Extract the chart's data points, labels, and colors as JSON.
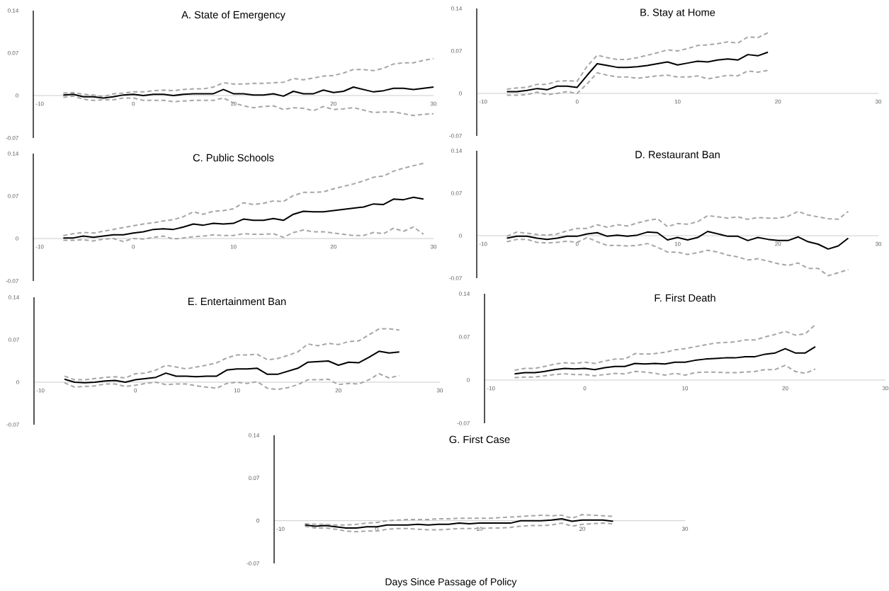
{
  "chart_data": [
    {
      "type": "line",
      "title": "A. State of Emergency",
      "xlim": [
        -10,
        30
      ],
      "ylim": [
        -0.07,
        0.14
      ],
      "xticks": [
        -10,
        0,
        10,
        20,
        30
      ],
      "yticks": [
        -0.07,
        0,
        0.07,
        0.14
      ],
      "x": [
        -7,
        -6,
        -5,
        -4,
        -3,
        -2,
        -1,
        0,
        1,
        2,
        3,
        4,
        5,
        6,
        7,
        8,
        9,
        10,
        11,
        12,
        13,
        14,
        15,
        16,
        17,
        18,
        19,
        20,
        21,
        22,
        23,
        24,
        25,
        26,
        27,
        28,
        29,
        30
      ],
      "series": [
        {
          "color": "#000000",
          "line_style": "solid",
          "values": [
            0.001,
            0.002,
            -0.002,
            -0.002,
            -0.004,
            -0.002,
            0.001,
            0.002,
            0,
            0.002,
            0.002,
            0,
            0.002,
            0.003,
            0.003,
            0.003,
            0.01,
            0.003,
            0.003,
            0.001,
            0.001,
            0.003,
            -0.001,
            0.007,
            0.003,
            0.003,
            0.009,
            0.005,
            0.007,
            0.014,
            0.01,
            0.006,
            0.008,
            0.012,
            0.012,
            0.01,
            0.012,
            0.014
          ]
        },
        {
          "color": "#a6a6a6",
          "line_style": "dashed",
          "values": [
            0.004,
            0.005,
            0.002,
            0.001,
            -0.002,
            0.003,
            0.004,
            0.006,
            0.006,
            0.008,
            0.009,
            0.008,
            0.01,
            0.011,
            0.011,
            0.014,
            0.021,
            0.019,
            0.019,
            0.02,
            0.02,
            0.021,
            0.022,
            0.028,
            0.026,
            0.029,
            0.032,
            0.033,
            0.037,
            0.043,
            0.043,
            0.041,
            0.045,
            0.052,
            0.054,
            0.054,
            0.058,
            0.061
          ]
        },
        {
          "color": "#a6a6a6",
          "line_style": "dashed",
          "values": [
            -0.003,
            -0.001,
            -0.006,
            -0.008,
            -0.007,
            -0.007,
            -0.004,
            -0.004,
            -0.008,
            -0.008,
            -0.008,
            -0.01,
            -0.009,
            -0.008,
            -0.008,
            -0.008,
            -0.004,
            -0.012,
            -0.017,
            -0.02,
            -0.018,
            -0.017,
            -0.023,
            -0.02,
            -0.021,
            -0.025,
            -0.018,
            -0.023,
            -0.022,
            -0.02,
            -0.024,
            -0.028,
            -0.027,
            -0.027,
            -0.03,
            -0.033,
            -0.031,
            -0.03
          ]
        }
      ]
    },
    {
      "type": "line",
      "title": "B. Stay at Home",
      "xlim": [
        -10,
        30
      ],
      "ylim": [
        -0.07,
        0.14
      ],
      "xticks": [
        -10,
        0,
        10,
        20,
        30
      ],
      "yticks": [
        -0.07,
        0,
        0.07,
        0.14
      ],
      "x": [
        -7,
        -6,
        -5,
        -4,
        -3,
        -2,
        -1,
        0,
        1,
        2,
        3,
        4,
        5,
        6,
        7,
        8,
        9,
        10,
        11,
        12,
        13,
        14,
        15,
        16,
        17,
        18,
        19
      ],
      "series": [
        {
          "color": "#000000",
          "line_style": "solid",
          "values": [
            0.003,
            0.003,
            0.005,
            0.008,
            0.006,
            0.012,
            0.012,
            0.01,
            0.03,
            0.049,
            0.046,
            0.043,
            0.043,
            0.044,
            0.046,
            0.049,
            0.052,
            0.047,
            0.05,
            0.053,
            0.052,
            0.055,
            0.057,
            0.055,
            0.064,
            0.062,
            0.068
          ]
        },
        {
          "color": "#a6a6a6",
          "line_style": "dashed",
          "values": [
            0.007,
            0.009,
            0.01,
            0.015,
            0.015,
            0.02,
            0.021,
            0.02,
            0.045,
            0.063,
            0.059,
            0.056,
            0.056,
            0.059,
            0.063,
            0.067,
            0.072,
            0.07,
            0.074,
            0.079,
            0.08,
            0.082,
            0.085,
            0.083,
            0.093,
            0.092,
            0.1
          ]
        },
        {
          "color": "#a6a6a6",
          "line_style": "dashed",
          "values": [
            -0.003,
            -0.003,
            -0.002,
            0.002,
            -0.002,
            0,
            0.003,
            0,
            0.016,
            0.034,
            0.03,
            0.027,
            0.027,
            0.025,
            0.027,
            0.029,
            0.03,
            0.027,
            0.027,
            0.029,
            0.024,
            0.027,
            0.03,
            0.029,
            0.037,
            0.035,
            0.038
          ]
        }
      ]
    },
    {
      "type": "line",
      "title": "C. Public Schools",
      "xlim": [
        -10,
        30
      ],
      "ylim": [
        -0.07,
        0.14
      ],
      "xticks": [
        -10,
        0,
        10,
        20,
        30
      ],
      "yticks": [
        -0.07,
        0,
        0.07,
        0.14
      ],
      "x": [
        -7,
        -6,
        -5,
        -4,
        -3,
        -2,
        -1,
        0,
        1,
        2,
        3,
        4,
        5,
        6,
        7,
        8,
        9,
        10,
        11,
        12,
        13,
        14,
        15,
        16,
        17,
        18,
        19,
        20,
        21,
        22,
        23,
        24,
        25,
        26,
        27,
        28,
        29
      ],
      "series": [
        {
          "color": "#000000",
          "line_style": "solid",
          "values": [
            0.001,
            0.001,
            0.004,
            0.002,
            0.004,
            0.006,
            0.006,
            0.009,
            0.011,
            0.015,
            0.016,
            0.015,
            0.019,
            0.024,
            0.022,
            0.025,
            0.024,
            0.025,
            0.032,
            0.03,
            0.03,
            0.033,
            0.03,
            0.04,
            0.045,
            0.044,
            0.044,
            0.046,
            0.048,
            0.05,
            0.052,
            0.057,
            0.056,
            0.065,
            0.064,
            0.068,
            0.065
          ]
        },
        {
          "color": "#a6a6a6",
          "line_style": "dashed",
          "values": [
            0.005,
            0.008,
            0.01,
            0.009,
            0.012,
            0.015,
            0.018,
            0.021,
            0.024,
            0.026,
            0.029,
            0.031,
            0.036,
            0.044,
            0.04,
            0.045,
            0.046,
            0.049,
            0.059,
            0.056,
            0.058,
            0.062,
            0.061,
            0.071,
            0.076,
            0.076,
            0.077,
            0.082,
            0.086,
            0.09,
            0.095,
            0.101,
            0.103,
            0.111,
            0.116,
            0.12,
            0.124
          ]
        },
        {
          "color": "#a6a6a6",
          "line_style": "dashed",
          "values": [
            -0.003,
            -0.003,
            -0.002,
            -0.004,
            -0.001,
            0,
            -0.005,
            0,
            -0.001,
            0.002,
            0.004,
            -0.001,
            0.001,
            0.003,
            0.004,
            0.006,
            0.005,
            0.005,
            0.008,
            0.007,
            0.007,
            0.008,
            0.002,
            0.01,
            0.014,
            0.011,
            0.011,
            0.009,
            0.007,
            0.005,
            0.005,
            0.01,
            0.008,
            0.017,
            0.012,
            0.019,
            0.007
          ]
        }
      ]
    },
    {
      "type": "line",
      "title": "D. Restaurant Ban",
      "xlim": [
        -10,
        30
      ],
      "ylim": [
        -0.07,
        0.14
      ],
      "xticks": [
        -10,
        0,
        10,
        20,
        30
      ],
      "yticks": [
        -0.07,
        0,
        0.07,
        0.14
      ],
      "x": [
        -7,
        -6,
        -5,
        -4,
        -3,
        -2,
        -1,
        0,
        1,
        2,
        3,
        4,
        5,
        6,
        7,
        8,
        9,
        10,
        11,
        12,
        13,
        14,
        15,
        16,
        17,
        18,
        19,
        20,
        21,
        22,
        23,
        24,
        25,
        26,
        27
      ],
      "series": [
        {
          "color": "#000000",
          "line_style": "solid",
          "values": [
            -0.004,
            -0.001,
            -0.001,
            -0.004,
            -0.006,
            -0.004,
            -0.001,
            -0.001,
            0.003,
            0.005,
            -0.001,
            0.001,
            -0.001,
            0.001,
            0.006,
            0.005,
            -0.007,
            -0.003,
            -0.007,
            -0.003,
            0.007,
            0.003,
            -0.001,
            -0.001,
            -0.008,
            -0.003,
            -0.006,
            -0.008,
            -0.008,
            -0.002,
            -0.01,
            -0.014,
            -0.022,
            -0.017,
            -0.004
          ]
        },
        {
          "color": "#a6a6a6",
          "line_style": "dashed",
          "values": [
            -0.001,
            0.006,
            0.004,
            0.002,
            0.001,
            0.003,
            0.008,
            0.012,
            0.012,
            0.018,
            0.014,
            0.018,
            0.016,
            0.021,
            0.025,
            0.028,
            0.015,
            0.02,
            0.019,
            0.023,
            0.033,
            0.031,
            0.029,
            0.031,
            0.027,
            0.03,
            0.029,
            0.029,
            0.032,
            0.04,
            0.034,
            0.031,
            0.028,
            0.027,
            0.04
          ]
        },
        {
          "color": "#a6a6a6",
          "line_style": "dashed",
          "values": [
            -0.01,
            -0.006,
            -0.006,
            -0.011,
            -0.012,
            -0.011,
            -0.009,
            -0.011,
            -0.003,
            -0.01,
            -0.016,
            -0.016,
            -0.017,
            -0.016,
            -0.013,
            -0.019,
            -0.027,
            -0.027,
            -0.031,
            -0.028,
            -0.024,
            -0.027,
            -0.032,
            -0.035,
            -0.04,
            -0.038,
            -0.042,
            -0.046,
            -0.049,
            -0.045,
            -0.054,
            -0.054,
            -0.066,
            -0.061,
            -0.056
          ]
        }
      ]
    },
    {
      "type": "line",
      "title": "E. Entertainment Ban",
      "xlim": [
        -10,
        30
      ],
      "ylim": [
        -0.07,
        0.14
      ],
      "xticks": [
        -10,
        0,
        10,
        20,
        30
      ],
      "yticks": [
        -0.07,
        0,
        0.07,
        0.14
      ],
      "x": [
        -7,
        -6,
        -5,
        -4,
        -3,
        -2,
        -1,
        0,
        1,
        2,
        3,
        4,
        5,
        6,
        7,
        8,
        9,
        10,
        11,
        12,
        13,
        14,
        15,
        16,
        17,
        18,
        19,
        20,
        21,
        22,
        23,
        24,
        25,
        26
      ],
      "series": [
        {
          "color": "#000000",
          "line_style": "solid",
          "values": [
            0.005,
            0,
            -0.001,
            0,
            0.002,
            0.003,
            0,
            0.004,
            0.006,
            0.008,
            0.015,
            0.01,
            0.01,
            0.009,
            0.01,
            0.01,
            0.02,
            0.022,
            0.022,
            0.023,
            0.013,
            0.013,
            0.018,
            0.023,
            0.033,
            0.034,
            0.035,
            0.028,
            0.033,
            0.032,
            0.041,
            0.051,
            0.048,
            0.05
          ]
        },
        {
          "color": "#a6a6a6",
          "line_style": "dashed",
          "values": [
            0.01,
            0.004,
            0.004,
            0.006,
            0.008,
            0.009,
            0.007,
            0.014,
            0.015,
            0.02,
            0.028,
            0.025,
            0.022,
            0.025,
            0.028,
            0.032,
            0.04,
            0.045,
            0.045,
            0.046,
            0.037,
            0.039,
            0.044,
            0.05,
            0.063,
            0.06,
            0.064,
            0.062,
            0.067,
            0.068,
            0.078,
            0.088,
            0.088,
            0.086
          ]
        },
        {
          "color": "#a6a6a6",
          "line_style": "dashed",
          "values": [
            -0.001,
            -0.008,
            -0.007,
            -0.006,
            -0.003,
            -0.003,
            -0.007,
            -0.005,
            -0.002,
            0,
            -0.004,
            -0.003,
            -0.003,
            -0.006,
            -0.008,
            -0.01,
            -0.002,
            0,
            -0.002,
            0.001,
            -0.01,
            -0.012,
            -0.009,
            -0.004,
            0.004,
            0.004,
            0.005,
            -0.004,
            -0.002,
            -0.003,
            0.004,
            0.014,
            0.007,
            0.011
          ]
        }
      ]
    },
    {
      "type": "line",
      "title": "F. First Death",
      "xlim": [
        -10,
        30
      ],
      "ylim": [
        -0.07,
        0.14
      ],
      "xticks": [
        -10,
        0,
        10,
        20,
        30
      ],
      "yticks": [
        -0.07,
        0,
        0.07,
        0.14
      ],
      "x": [
        -7,
        -6,
        -5,
        -4,
        -3,
        -2,
        -1,
        0,
        1,
        2,
        3,
        4,
        5,
        6,
        7,
        8,
        9,
        10,
        11,
        12,
        13,
        14,
        15,
        16,
        17,
        18,
        19,
        20,
        21,
        22,
        23
      ],
      "series": [
        {
          "color": "#000000",
          "line_style": "solid",
          "values": [
            0.01,
            0.012,
            0.012,
            0.014,
            0.017,
            0.019,
            0.018,
            0.019,
            0.017,
            0.02,
            0.022,
            0.022,
            0.027,
            0.026,
            0.027,
            0.026,
            0.029,
            0.029,
            0.032,
            0.034,
            0.035,
            0.036,
            0.036,
            0.038,
            0.038,
            0.042,
            0.044,
            0.051,
            0.044,
            0.044,
            0.054
          ]
        },
        {
          "color": "#a6a6a6",
          "line_style": "dashed",
          "values": [
            0.016,
            0.019,
            0.019,
            0.022,
            0.026,
            0.028,
            0.027,
            0.029,
            0.027,
            0.031,
            0.034,
            0.034,
            0.043,
            0.042,
            0.043,
            0.045,
            0.049,
            0.051,
            0.054,
            0.057,
            0.06,
            0.061,
            0.062,
            0.065,
            0.065,
            0.07,
            0.074,
            0.079,
            0.073,
            0.075,
            0.09
          ]
        },
        {
          "color": "#a6a6a6",
          "line_style": "dashed",
          "values": [
            0.004,
            0.005,
            0.005,
            0.007,
            0.009,
            0.01,
            0.009,
            0.009,
            0.007,
            0.009,
            0.011,
            0.01,
            0.014,
            0.013,
            0.011,
            0.008,
            0.011,
            0.008,
            0.012,
            0.013,
            0.013,
            0.012,
            0.012,
            0.013,
            0.014,
            0.017,
            0.017,
            0.024,
            0.014,
            0.011,
            0.018
          ]
        }
      ]
    },
    {
      "type": "line",
      "title": "G. First Case",
      "xlabel": "Days Since Passage of Policy",
      "xlim": [
        -10,
        30
      ],
      "ylim": [
        -0.07,
        0.14
      ],
      "xticks": [
        -10,
        0,
        10,
        20,
        30
      ],
      "yticks": [
        -0.07,
        0,
        0.07,
        0.14
      ],
      "x": [
        -7,
        -6,
        -5,
        -4,
        -3,
        -2,
        -1,
        0,
        1,
        2,
        3,
        4,
        5,
        6,
        7,
        8,
        9,
        10,
        11,
        12,
        13,
        14,
        15,
        16,
        17,
        18,
        19,
        20,
        21,
        22,
        23
      ],
      "series": [
        {
          "color": "#000000",
          "line_style": "solid",
          "values": [
            -0.007,
            -0.009,
            -0.008,
            -0.01,
            -0.012,
            -0.012,
            -0.01,
            -0.01,
            -0.007,
            -0.007,
            -0.007,
            -0.006,
            -0.007,
            -0.006,
            -0.006,
            -0.004,
            -0.005,
            -0.004,
            -0.004,
            -0.004,
            -0.004,
            0,
            0,
            0,
            0.001,
            0.003,
            -0.001,
            0.001,
            0.001,
            0.001,
            -0.001
          ]
        },
        {
          "color": "#a6a6a6",
          "line_style": "dashed",
          "values": [
            -0.005,
            -0.006,
            -0.006,
            -0.007,
            -0.007,
            -0.006,
            -0.004,
            -0.003,
            0,
            0.001,
            0.002,
            0.002,
            0.002,
            0.003,
            0.003,
            0.004,
            0.004,
            0.004,
            0.004,
            0.005,
            0.006,
            0.007,
            0.008,
            0.009,
            0.008,
            0.009,
            0.004,
            0.01,
            0.009,
            0.008,
            0.007
          ]
        },
        {
          "color": "#a6a6a6",
          "line_style": "dashed",
          "values": [
            -0.009,
            -0.012,
            -0.012,
            -0.014,
            -0.017,
            -0.018,
            -0.017,
            -0.017,
            -0.014,
            -0.013,
            -0.013,
            -0.014,
            -0.015,
            -0.015,
            -0.014,
            -0.013,
            -0.013,
            -0.013,
            -0.012,
            -0.012,
            -0.011,
            -0.009,
            -0.008,
            -0.008,
            -0.007,
            -0.004,
            -0.009,
            -0.006,
            -0.005,
            -0.004,
            -0.005
          ]
        }
      ]
    }
  ]
}
